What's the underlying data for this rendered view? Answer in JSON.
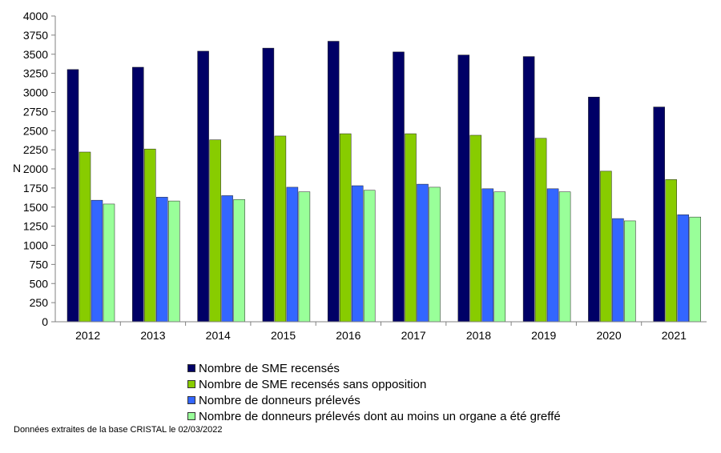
{
  "chart_data": {
    "type": "bar",
    "categories": [
      "2012",
      "2013",
      "2014",
      "2015",
      "2016",
      "2017",
      "2018",
      "2019",
      "2020",
      "2021"
    ],
    "series": [
      {
        "name": "Nombre de SME recensés",
        "color": "#000066",
        "values": [
          3300,
          3330,
          3540,
          3580,
          3670,
          3530,
          3490,
          3470,
          2940,
          2810
        ]
      },
      {
        "name": "Nombre de SME recensés sans opposition",
        "color": "#88CC00",
        "values": [
          2220,
          2260,
          2380,
          2430,
          2460,
          2460,
          2440,
          2400,
          1970,
          1860
        ]
      },
      {
        "name": "Nombre de donneurs prélevés",
        "color": "#3366FF",
        "values": [
          1590,
          1630,
          1650,
          1760,
          1780,
          1800,
          1740,
          1740,
          1350,
          1400
        ]
      },
      {
        "name": "Nombre de donneurs prélevés dont au moins un organe a été greffé",
        "color": "#99FF99",
        "values": [
          1540,
          1580,
          1600,
          1700,
          1720,
          1760,
          1700,
          1700,
          1320,
          1370
        ]
      }
    ],
    "ylabel": "N",
    "ylim": [
      0,
      4000
    ],
    "yticks": [
      0,
      250,
      500,
      750,
      1000,
      1250,
      1500,
      1750,
      2000,
      2250,
      2500,
      2750,
      3000,
      3250,
      3500,
      3750,
      4000
    ],
    "grid": false,
    "legend_position": "bottom"
  },
  "source_note": "Données extraites de la base CRISTAL le 02/03/2022"
}
